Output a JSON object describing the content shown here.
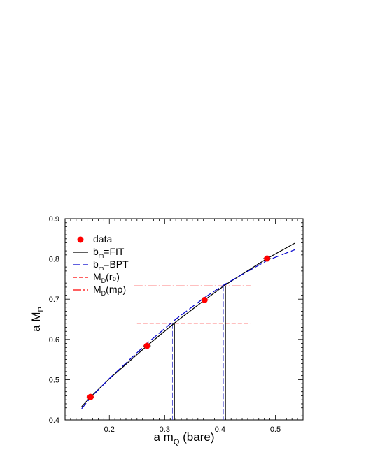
{
  "chart_data": {
    "type": "line",
    "xlabel": {
      "main": "a m",
      "sub": "Q",
      "tail": " (bare)"
    },
    "ylabel": {
      "main": "a M",
      "sub": "P"
    },
    "xlim": [
      0.12,
      0.55
    ],
    "ylim": [
      0.4,
      0.9
    ],
    "x_ticks": [
      "0.2",
      "0.3",
      "0.4",
      "0.5"
    ],
    "x_tick_values": [
      0.2,
      0.3,
      0.4,
      0.5
    ],
    "y_ticks": [
      "0.4",
      "0.5",
      "0.6",
      "0.7",
      "0.8",
      "0.9"
    ],
    "y_tick_values": [
      0.4,
      0.5,
      0.6,
      0.7,
      0.8,
      0.9
    ],
    "grid": false,
    "legend_position": "top-left",
    "colors": {
      "data": "#ff0000",
      "fit": "#000000",
      "bpt": "#0000cc",
      "ref": "#ff0000",
      "vline": "#000000"
    },
    "legend": [
      {
        "key": "data",
        "main": "data",
        "sub": "",
        "tail": ""
      },
      {
        "key": "fit",
        "main": "b",
        "sub": "m",
        "tail": "=FIT"
      },
      {
        "key": "bpt",
        "main": "b",
        "sub": "m",
        "tail": "=BPT"
      },
      {
        "key": "ref_r0",
        "main": "M",
        "sub": "D",
        "tail": "(r₀)"
      },
      {
        "key": "ref_mrho",
        "main": "M",
        "sub": "D",
        "tail": "(mρ)"
      }
    ],
    "series": [
      {
        "name": "data",
        "kind": "scatter",
        "x": [
          0.166,
          0.268,
          0.372,
          0.485
        ],
        "y": [
          0.457,
          0.584,
          0.698,
          0.801
        ],
        "xerr": [
          0.007,
          0.007,
          0.007,
          0.007
        ]
      },
      {
        "name": "b_m=FIT",
        "kind": "line",
        "style": "solid",
        "x": [
          0.15,
          0.166,
          0.2,
          0.268,
          0.32,
          0.372,
          0.41,
          0.485,
          0.535
        ],
        "y": [
          0.433,
          0.457,
          0.502,
          0.584,
          0.643,
          0.698,
          0.736,
          0.801,
          0.839
        ]
      },
      {
        "name": "b_m=BPT",
        "kind": "line",
        "style": "dashed",
        "x": [
          0.15,
          0.166,
          0.2,
          0.268,
          0.32,
          0.372,
          0.41,
          0.485,
          0.535
        ],
        "y": [
          0.428,
          0.455,
          0.503,
          0.59,
          0.65,
          0.704,
          0.738,
          0.796,
          0.823
        ]
      }
    ],
    "reference_lines": [
      {
        "name": "M_D(r0)",
        "y": 0.64,
        "x_range": [
          0.25,
          0.455
        ],
        "style": "dashed",
        "vlines_x": [
          0.314,
          0.318
        ]
      },
      {
        "name": "M_D(mρ)",
        "y": 0.733,
        "x_range": [
          0.245,
          0.455
        ],
        "style": "dashdot",
        "vlines_x": [
          0.406,
          0.41
        ]
      }
    ]
  }
}
